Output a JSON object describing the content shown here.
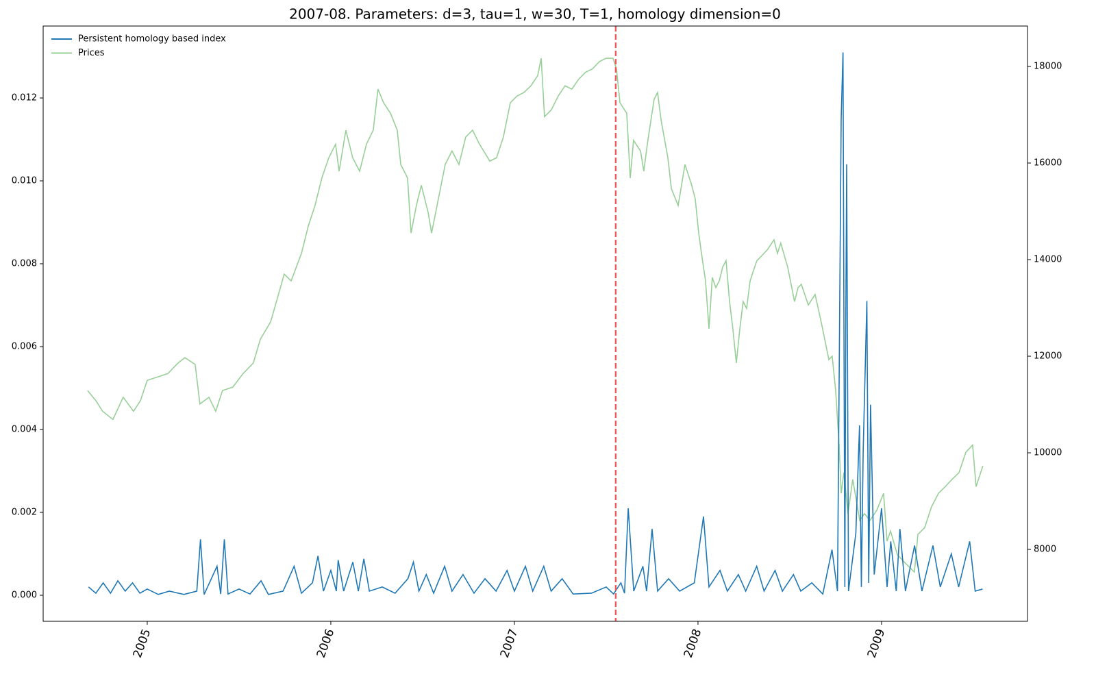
{
  "chart_data": {
    "type": "line",
    "title": "2007-08. Parameters: d=3, tau=1, w=30, T=1, homology dimension=0",
    "xlim": [
      2004.433,
      2009.795
    ],
    "xticks": [
      2005,
      2006,
      2007,
      2008,
      2009
    ],
    "ylim": [
      -0.000628,
      0.013736
    ],
    "yticks": [
      {
        "value": 0,
        "label": "0.000"
      },
      {
        "value": 0.002,
        "label": "0.002"
      },
      {
        "value": 0.004,
        "label": "0.004"
      },
      {
        "value": 0.006,
        "label": "0.006"
      },
      {
        "value": 0.008,
        "label": "0.008"
      },
      {
        "value": 0.01,
        "label": "0.010"
      },
      {
        "value": 0.012,
        "label": "0.012"
      }
    ],
    "y2lim": [
      6511,
      18837
    ],
    "y2ticks": [
      8000,
      10000,
      12000,
      14000,
      16000,
      18000
    ],
    "legend": "upper left",
    "vline": {
      "x": 2007.552,
      "color": "#f0585a"
    },
    "series": [
      {
        "name": "Persistent homology based index",
        "color": "#1f77b4",
        "x": [
          2004.68,
          2004.72,
          2004.76,
          2004.8,
          2004.84,
          2004.88,
          2004.92,
          2004.96,
          2005.0,
          2005.06,
          2005.12,
          2005.2,
          2005.27,
          2005.29,
          2005.31,
          2005.38,
          2005.4,
          2005.42,
          2005.44,
          2005.5,
          2005.56,
          2005.62,
          2005.66,
          2005.74,
          2005.8,
          2005.84,
          2005.9,
          2005.93,
          2005.96,
          2006.0,
          2006.03,
          2006.04,
          2006.07,
          2006.12,
          2006.15,
          2006.18,
          2006.21,
          2006.28,
          2006.35,
          2006.42,
          2006.45,
          2006.48,
          2006.52,
          2006.56,
          2006.62,
          2006.66,
          2006.72,
          2006.78,
          2006.84,
          2006.9,
          2006.96,
          2007.0,
          2007.06,
          2007.1,
          2007.16,
          2007.2,
          2007.26,
          2007.32,
          2007.42,
          2007.5,
          2007.54,
          2007.58,
          2007.6,
          2007.62,
          2007.65,
          2007.7,
          2007.72,
          2007.75,
          2007.78,
          2007.84,
          2007.9,
          2007.98,
          2008.03,
          2008.06,
          2008.12,
          2008.16,
          2008.22,
          2008.26,
          2008.32,
          2008.36,
          2008.42,
          2008.46,
          2008.52,
          2008.56,
          2008.62,
          2008.68,
          2008.73,
          2008.76,
          2008.78,
          2008.79,
          2008.8,
          2008.805,
          2008.81,
          2008.82,
          2008.86,
          2008.88,
          2008.89,
          2008.9,
          2008.92,
          2008.93,
          2008.94,
          2008.96,
          2009.0,
          2009.03,
          2009.05,
          2009.08,
          2009.1,
          2009.13,
          2009.18,
          2009.22,
          2009.28,
          2009.32,
          2009.38,
          2009.42,
          2009.48,
          2009.51,
          2009.55
        ],
        "values": [
          0.0002,
          5e-05,
          0.0003,
          5e-05,
          0.00035,
          0.0001,
          0.0003,
          5e-05,
          0.00015,
          2e-05,
          0.0001,
          2e-05,
          0.0001,
          0.00135,
          2e-05,
          0.0007,
          3e-05,
          0.00135,
          3e-05,
          0.00015,
          3e-05,
          0.00035,
          2e-05,
          0.0001,
          0.0007,
          5e-05,
          0.0003,
          0.00095,
          0.0001,
          0.0006,
          0.0001,
          0.00085,
          0.0001,
          0.0008,
          0.0001,
          0.00088,
          0.0001,
          0.0002,
          5e-05,
          0.0004,
          0.0008,
          0.0001,
          0.0005,
          5e-05,
          0.0007,
          0.0001,
          0.0005,
          5e-05,
          0.0004,
          0.0001,
          0.0006,
          0.0001,
          0.0007,
          0.0001,
          0.0007,
          0.0001,
          0.0004,
          3e-05,
          5e-05,
          0.0002,
          3e-05,
          0.0003,
          5e-05,
          0.0021,
          0.0001,
          0.0007,
          0.0001,
          0.0016,
          0.0001,
          0.0004,
          0.0001,
          0.0003,
          0.0019,
          0.0002,
          0.0006,
          0.0001,
          0.0005,
          0.0001,
          0.0007,
          0.0001,
          0.0006,
          0.0001,
          0.0005,
          0.0001,
          0.0003,
          3e-05,
          0.0011,
          0.0001,
          0.0115,
          0.0131,
          0.0002,
          0.0064,
          0.0104,
          0.0001,
          0.0015,
          0.0041,
          0.0002,
          0.0035,
          0.0071,
          0.0003,
          0.0046,
          0.0005,
          0.0021,
          0.0002,
          0.0013,
          0.0001,
          0.0016,
          0.0001,
          0.0012,
          0.0001,
          0.0012,
          0.0002,
          0.001,
          0.0002,
          0.0013,
          0.0001,
          0.00015
        ]
      },
      {
        "name": "Prices",
        "color": "#98cf98",
        "axis": "y2",
        "x": [
          2004.675,
          2004.72,
          2004.757,
          2004.813,
          2004.869,
          2004.925,
          2004.963,
          2005.0,
          2005.056,
          2005.112,
          2005.168,
          2005.205,
          2005.261,
          2005.287,
          2005.336,
          2005.373,
          2005.41,
          2005.466,
          2005.522,
          2005.578,
          2005.616,
          2005.672,
          2005.709,
          2005.746,
          2005.784,
          2005.84,
          2005.877,
          2005.914,
          2005.951,
          2005.989,
          2006.026,
          2006.045,
          2006.082,
          2006.119,
          2006.157,
          2006.194,
          2006.231,
          2006.257,
          2006.287,
          2006.325,
          2006.362,
          2006.381,
          2006.418,
          2006.437,
          2006.466,
          2006.493,
          2006.53,
          2006.549,
          2006.586,
          2006.623,
          2006.66,
          2006.698,
          2006.735,
          2006.772,
          2006.81,
          2006.866,
          2006.903,
          2006.94,
          2006.978,
          2007.015,
          2007.052,
          2007.09,
          2007.127,
          2007.146,
          2007.164,
          2007.201,
          2007.239,
          2007.276,
          2007.313,
          2007.351,
          2007.388,
          2007.425,
          2007.463,
          2007.5,
          2007.537,
          2007.556,
          2007.575,
          2007.612,
          2007.631,
          2007.649,
          2007.687,
          2007.705,
          2007.724,
          2007.761,
          2007.78,
          2007.799,
          2007.836,
          2007.855,
          2007.892,
          2007.929,
          2007.966,
          2007.985,
          2008.004,
          2008.022,
          2008.041,
          2008.06,
          2008.078,
          2008.097,
          2008.116,
          2008.134,
          2008.153,
          2008.172,
          2008.19,
          2008.209,
          2008.228,
          2008.246,
          2008.265,
          2008.284,
          2008.302,
          2008.321,
          2008.34,
          2008.377,
          2008.414,
          2008.433,
          2008.451,
          2008.489,
          2008.526,
          2008.545,
          2008.563,
          2008.601,
          2008.638,
          2008.675,
          2008.713,
          2008.731,
          2008.75,
          2008.769,
          2008.78,
          2008.795,
          2008.817,
          2008.843,
          2008.881,
          2008.907,
          2008.937,
          2008.974,
          2009.011,
          2009.03,
          2009.049,
          2009.086,
          2009.123,
          2009.16,
          2009.179,
          2009.198,
          2009.235,
          2009.272,
          2009.31,
          2009.347,
          2009.384,
          2009.422,
          2009.459,
          2009.496,
          2009.515,
          2009.552
        ],
        "values": [
          11290,
          11080,
          10860,
          10690,
          11150,
          10860,
          11080,
          11500,
          11570,
          11640,
          11860,
          11970,
          11830,
          11010,
          11150,
          10860,
          11290,
          11360,
          11640,
          11860,
          12350,
          12710,
          13200,
          13700,
          13560,
          14130,
          14690,
          15120,
          15690,
          16110,
          16390,
          15830,
          16680,
          16110,
          15830,
          16390,
          16680,
          17530,
          17250,
          17030,
          16680,
          15970,
          15690,
          14550,
          15120,
          15540,
          14980,
          14550,
          15260,
          15970,
          16250,
          15970,
          16540,
          16680,
          16390,
          16040,
          16110,
          16540,
          17250,
          17390,
          17460,
          17600,
          17810,
          18170,
          16960,
          17100,
          17390,
          17600,
          17530,
          17740,
          17880,
          17950,
          18100,
          18170,
          18170,
          17950,
          17250,
          17030,
          15690,
          16470,
          16250,
          15830,
          16390,
          17320,
          17460,
          16890,
          16110,
          15470,
          15120,
          15970,
          15540,
          15260,
          14550,
          14050,
          13560,
          12570,
          13630,
          13420,
          13560,
          13840,
          13980,
          13130,
          12570,
          11860,
          12570,
          13130,
          12990,
          13560,
          13770,
          13980,
          14050,
          14200,
          14410,
          14130,
          14340,
          13840,
          13130,
          13420,
          13490,
          13060,
          13280,
          12640,
          11930,
          12000,
          11290,
          10160,
          9160,
          9590,
          8740,
          9450,
          8600,
          8740,
          8600,
          8810,
          9160,
          8170,
          8380,
          7890,
          7740,
          7600,
          7530,
          8310,
          8450,
          8880,
          9160,
          9300,
          9450,
          9590,
          10010,
          10160,
          9300,
          9730
        ]
      }
    ]
  }
}
